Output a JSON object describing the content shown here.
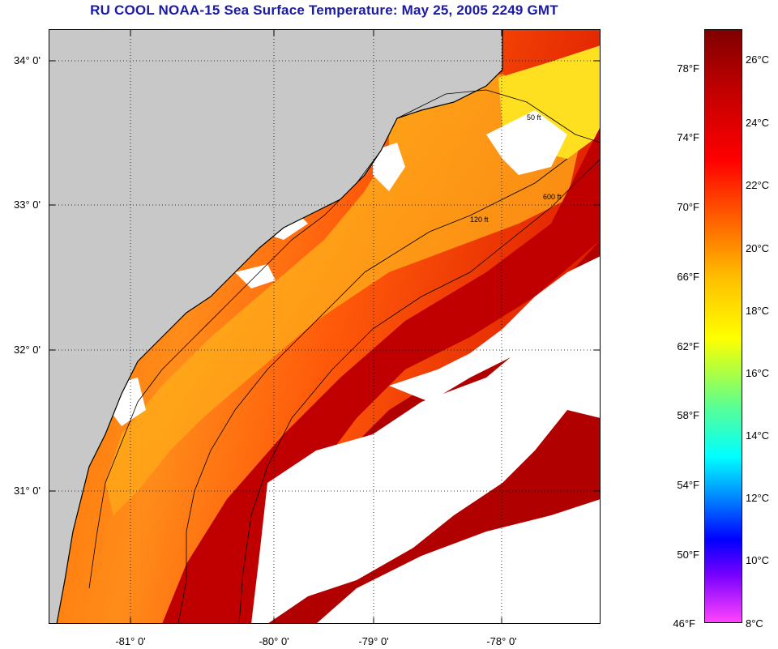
{
  "title": "RU COOL  NOAA-15  Sea Surface Temperature:  May 25, 2005 2249 GMT",
  "map": {
    "latitude_labels": [
      "34° 0'",
      "33° 0'",
      "32° 0'",
      "31° 0'"
    ],
    "longitude_labels": [
      "-81° 0'",
      "-80° 0'",
      "-79° 0'",
      "-78° 0'"
    ],
    "isobath_labels": [
      "50 ft",
      "120 ft",
      "600 ft"
    ],
    "colors": {
      "land": "#c8c8c8",
      "cloud": "#ffffff"
    }
  },
  "colorbar": {
    "fahrenheit_labels": [
      "78°F",
      "74°F",
      "70°F",
      "66°F",
      "62°F",
      "58°F",
      "54°F",
      "50°F",
      "46°F"
    ],
    "celsius_labels": [
      "26°C",
      "24°C",
      "22°C",
      "20°C",
      "18°C",
      "16°C",
      "14°C",
      "12°C",
      "10°C",
      "8°C"
    ]
  }
}
